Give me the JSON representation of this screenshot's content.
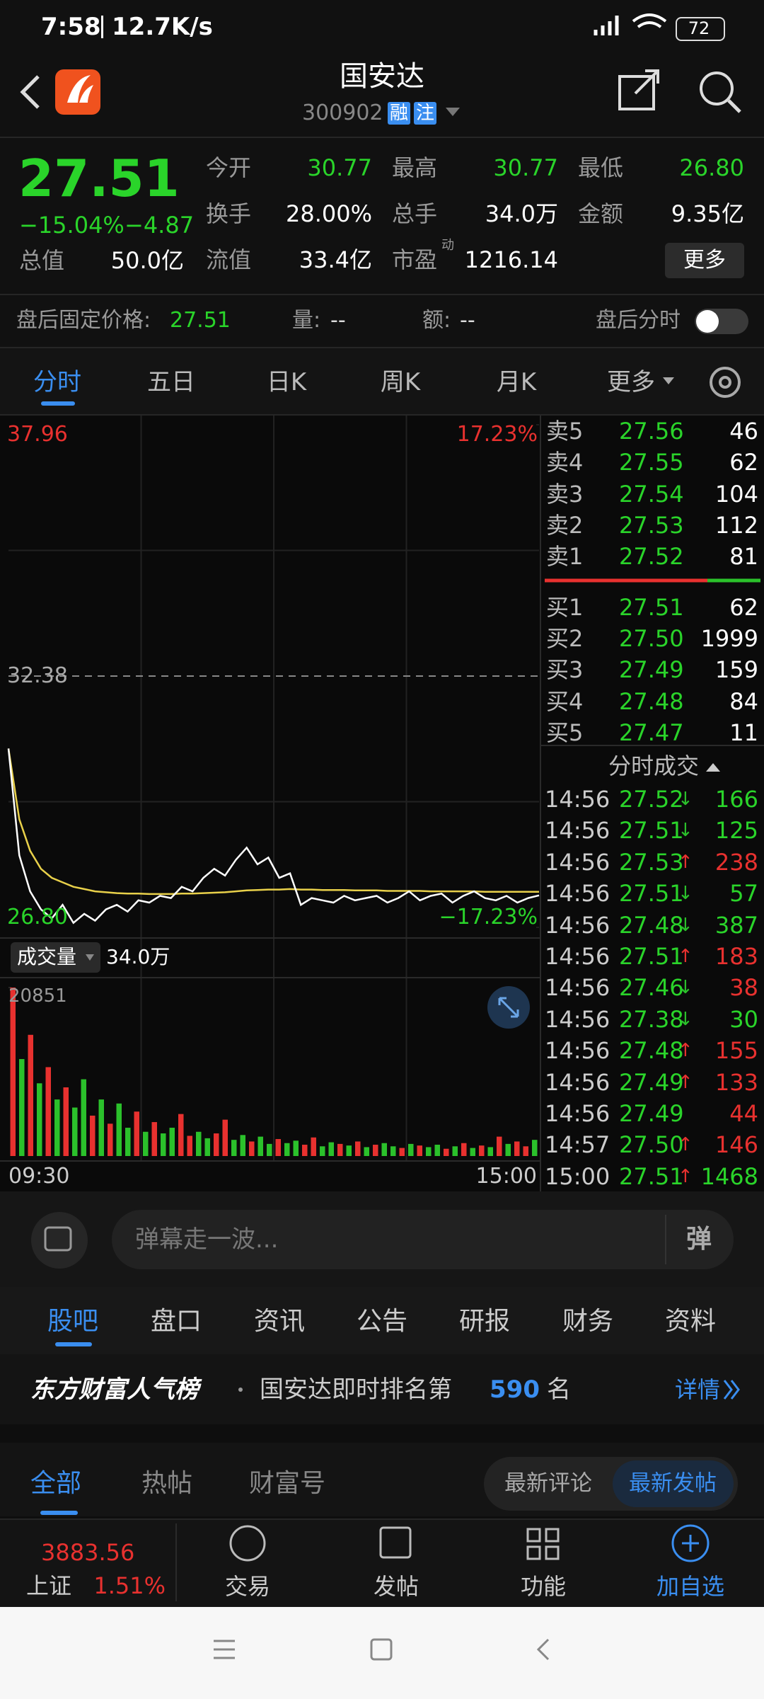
{
  "status_bar": {
    "time": "7:58",
    "network_speed": "12.7K/s",
    "battery": "72"
  },
  "header": {
    "title": "国安达",
    "code": "300902",
    "tags": [
      "融",
      "注"
    ]
  },
  "quote": {
    "price": "27.51",
    "change_pct": "−15.04%",
    "change": "−4.87",
    "total_value": {
      "label": "总值",
      "value": "50.0亿"
    },
    "fields": [
      {
        "label": "今开",
        "value": "30.77",
        "color": "#2ad42a"
      },
      {
        "label": "最高",
        "value": "30.77",
        "color": "#2ad42a"
      },
      {
        "label": "最低",
        "value": "26.80",
        "color": "#2ad42a"
      },
      {
        "label": "换手",
        "value": "28.00%",
        "color": "#ffffff"
      },
      {
        "label": "总手",
        "value": "34.0万",
        "color": "#ffffff"
      },
      {
        "label": "金额",
        "value": "9.35亿",
        "color": "#ffffff"
      },
      {
        "label": "流值",
        "value": "33.4亿",
        "color": "#ffffff"
      },
      {
        "label": "市盈",
        "superscript": "动",
        "value": "1216.14",
        "color": "#ffffff"
      }
    ],
    "more_button": "更多"
  },
  "after_hours": {
    "label": "盘后固定价格:",
    "price": "27.51",
    "volume_label": "量:",
    "volume": "--",
    "amount_label": "额:",
    "amount": "--",
    "toggle_label": "盘后分时"
  },
  "chart_tabs": [
    "分时",
    "五日",
    "日K",
    "周K",
    "月K",
    "更多"
  ],
  "intraday": {
    "type": "line",
    "ylim": [
      26.8,
      37.96
    ],
    "yticks": [
      37.96,
      32.38,
      {
        "value": 26.8,
        "label": "26.80"
      }
    ],
    "y2lim": [
      -17.23,
      17.23
    ],
    "y2ticks": [
      {
        "value": 17.23,
        "label": "17.23%"
      },
      {
        "value": -17.23,
        "label": "−17.23%"
      }
    ],
    "price": [
      30.77,
      28.4,
      27.6,
      27.2,
      27.0,
      27.3,
      26.9,
      27.1,
      26.95,
      27.2,
      27.3,
      27.15,
      27.4,
      27.35,
      27.5,
      27.45,
      27.7,
      27.6,
      27.9,
      28.1,
      27.95,
      28.3,
      28.57,
      28.2,
      28.35,
      27.9,
      28.0,
      27.3,
      27.45,
      27.4,
      27.35,
      27.5,
      27.4,
      27.45,
      27.5,
      27.35,
      27.45,
      27.6,
      27.4,
      27.5,
      27.55,
      27.35,
      27.5,
      27.6,
      27.45,
      27.4,
      27.5,
      27.35,
      27.45,
      27.51
    ],
    "avg_price": [
      30.77,
      29.2,
      28.5,
      28.1,
      27.9,
      27.8,
      27.7,
      27.65,
      27.6,
      27.58,
      27.56,
      27.55,
      27.55,
      27.54,
      27.54,
      27.54,
      27.55,
      27.55,
      27.56,
      27.57,
      27.58,
      27.6,
      27.62,
      27.63,
      27.64,
      27.64,
      27.65,
      27.64,
      27.64,
      27.63,
      27.63,
      27.63,
      27.62,
      27.62,
      27.62,
      27.61,
      27.61,
      27.61,
      27.61,
      27.6,
      27.6,
      27.6,
      27.6,
      27.6,
      27.59,
      27.59,
      27.59,
      27.59,
      27.59,
      27.59
    ],
    "price_color": "#ffffff",
    "avg_color": "#e8d04a",
    "x_labels": [
      "09:30",
      "15:00"
    ],
    "volume": {
      "label": "成交量",
      "total": "34.0万",
      "ylim": [
        0,
        20851
      ],
      "yticks": [
        20851
      ],
      "values": [
        20851,
        12000,
        15000,
        9000,
        11000,
        7000,
        8500,
        6000,
        9500,
        5000,
        7000,
        4000,
        6500,
        3500,
        5500,
        3000,
        4200,
        2800,
        3500,
        5200,
        2500,
        3000,
        2200,
        2800,
        4500,
        2000,
        2600,
        1800,
        2400,
        1500,
        2100,
        1600,
        1900,
        1400,
        2300,
        1200,
        1700,
        1500,
        1300,
        1800,
        1100,
        1400,
        1600,
        1200,
        1000,
        1500,
        1300,
        1100,
        1400,
        900,
        1200,
        1600,
        1000,
        1300,
        1100,
        2400,
        1500,
        1800,
        1200,
        2000
      ],
      "rising": [
        true,
        false,
        true,
        false,
        true,
        false,
        true,
        false,
        false,
        true,
        false,
        true,
        false,
        false,
        true,
        false,
        true,
        false,
        false,
        true,
        true,
        false,
        false,
        true,
        true,
        false,
        false,
        true,
        false,
        false,
        true,
        false,
        false,
        true,
        true,
        false,
        false,
        true,
        false,
        true,
        false,
        true,
        false,
        false,
        true,
        false,
        true,
        false,
        false,
        true,
        false,
        true,
        false,
        true,
        false,
        true,
        false,
        true,
        true,
        false
      ],
      "up_color": "#e8312f",
      "down_color": "#2bc12b"
    }
  },
  "order_book": {
    "asks": [
      {
        "label": "卖5",
        "price": "27.56",
        "volume": "46"
      },
      {
        "label": "卖4",
        "price": "27.55",
        "volume": "62"
      },
      {
        "label": "卖3",
        "price": "27.54",
        "volume": "104"
      },
      {
        "label": "卖2",
        "price": "27.53",
        "volume": "112"
      },
      {
        "label": "卖1",
        "price": "27.52",
        "volume": "81"
      }
    ],
    "bids": [
      {
        "label": "买1",
        "price": "27.51",
        "volume": "62"
      },
      {
        "label": "买2",
        "price": "27.50",
        "volume": "1999"
      },
      {
        "label": "买3",
        "price": "27.49",
        "volume": "159"
      },
      {
        "label": "买4",
        "price": "27.48",
        "volume": "84"
      },
      {
        "label": "买5",
        "price": "27.47",
        "volume": "11"
      }
    ]
  },
  "trades": {
    "title": "分时成交",
    "rows": [
      {
        "time": "14:56",
        "price": "27.52",
        "arrow": "↓",
        "arrow_color": "#2bc12b",
        "volume": "166",
        "volume_color": "#2ad42a"
      },
      {
        "time": "14:56",
        "price": "27.51",
        "arrow": "↓",
        "arrow_color": "#2bc12b",
        "volume": "125",
        "volume_color": "#2ad42a"
      },
      {
        "time": "14:56",
        "price": "27.53",
        "arrow": "↑",
        "arrow_color": "#e8312f",
        "volume": "238",
        "volume_color": "#e8312f"
      },
      {
        "time": "14:56",
        "price": "27.51",
        "arrow": "↓",
        "arrow_color": "#2bc12b",
        "volume": "57",
        "volume_color": "#2ad42a"
      },
      {
        "time": "14:56",
        "price": "27.48",
        "arrow": "↓",
        "arrow_color": "#2bc12b",
        "volume": "387",
        "volume_color": "#2ad42a"
      },
      {
        "time": "14:56",
        "price": "27.51",
        "arrow": "↑",
        "arrow_color": "#e8312f",
        "volume": "183",
        "volume_color": "#e8312f"
      },
      {
        "time": "14:56",
        "price": "27.46",
        "arrow": "↓",
        "arrow_color": "#2bc12b",
        "volume": "38",
        "volume_color": "#e8312f"
      },
      {
        "time": "14:56",
        "price": "27.38",
        "arrow": "↓",
        "arrow_color": "#2bc12b",
        "volume": "30",
        "volume_color": "#2ad42a"
      },
      {
        "time": "14:56",
        "price": "27.48",
        "arrow": "↑",
        "arrow_color": "#e8312f",
        "volume": "155",
        "volume_color": "#e8312f"
      },
      {
        "time": "14:56",
        "price": "27.49",
        "arrow": "↑",
        "arrow_color": "#e8312f",
        "volume": "133",
        "volume_color": "#e8312f"
      },
      {
        "time": "14:56",
        "price": "27.49",
        "volume": "44",
        "volume_color": "#e8312f"
      },
      {
        "time": "14:57",
        "price": "27.50",
        "arrow": "↑",
        "arrow_color": "#e8312f",
        "volume": "146",
        "volume_color": "#e8312f"
      },
      {
        "time": "15:00",
        "price": "27.51",
        "arrow": "↑",
        "arrow_color": "#e8312f",
        "volume": "1468",
        "volume_color": "#2ad42a"
      }
    ]
  },
  "danmaku": {
    "placeholder": "弹幕走一波...",
    "button": "弹"
  },
  "guba_tabs": [
    "股吧",
    "盘口",
    "资讯",
    "公告",
    "研报",
    "财务",
    "资料"
  ],
  "ranking": {
    "brand": "东方财富人气榜",
    "text": "国安达即时排名第",
    "rank": "590",
    "unit": "名",
    "link": "详情"
  },
  "post_tabs": [
    "全部",
    "热帖",
    "财富号"
  ],
  "sort_options": [
    "最新评论",
    "最新发帖"
  ],
  "bottom_nav": {
    "index": {
      "value": "3883.56",
      "name": "上证",
      "change_pct": "1.51%"
    },
    "items": [
      "交易",
      "发帖",
      "功能",
      "加自选"
    ]
  }
}
